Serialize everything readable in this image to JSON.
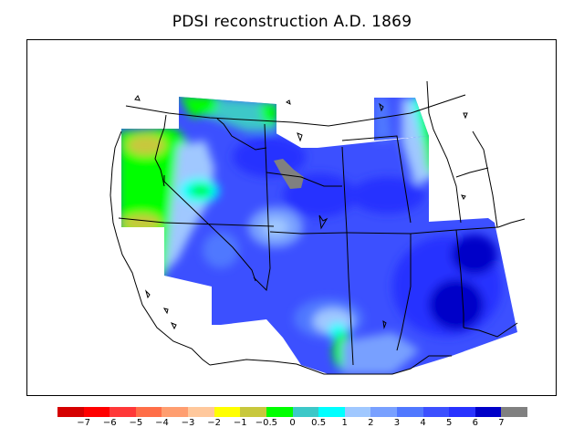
{
  "title": "PDSI reconstruction A.D. 1869",
  "colors": {
    "water": "#808080",
    "outline": "#000000",
    "legend_bins": [
      "#d50000",
      "#ff0000",
      "#ff3838",
      "#ff6e48",
      "#ff9e70",
      "#ffc89c",
      "#ffff00",
      "#c8c83c",
      "#00ff00",
      "#3cc8c8",
      "#00ffff",
      "#a0c8ff",
      "#78a0ff",
      "#5078ff",
      "#3c50ff",
      "#2832ff",
      "#0000c8",
      "#808080"
    ]
  },
  "legend": {
    "labels": [
      "−7",
      "−6",
      "−5",
      "−4",
      "−3",
      "−2",
      "−1",
      "−0.5",
      "0",
      "0.5",
      "1",
      "2",
      "3",
      "4",
      "5",
      "6",
      "7"
    ]
  }
}
